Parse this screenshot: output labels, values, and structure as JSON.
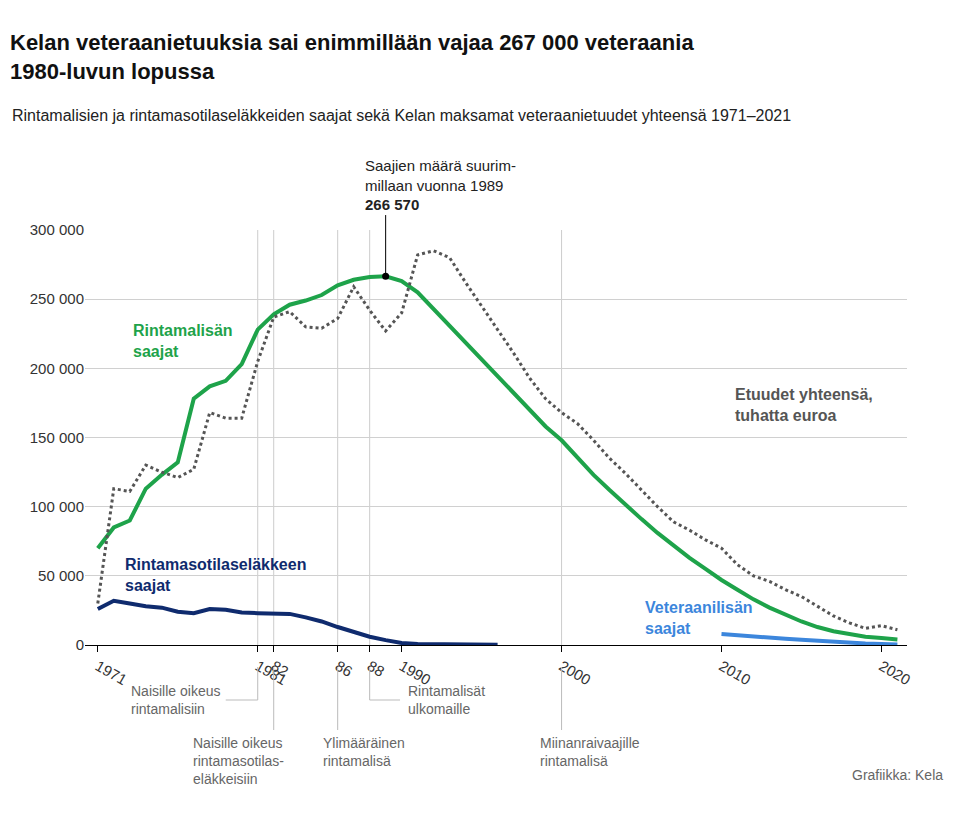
{
  "chart_data": {
    "type": "line",
    "title": "Kelan veteraanietuuksia sai enimmillään vajaa 267 000 veteraania\n1980-luvun lopussa",
    "subtitle": "Rintamalisien ja rintamasotilaseläkkeiden saajat sekä Kelan maksamat veteraanietuudet yhteensä 1971–2021",
    "source": "Grafiikka: Kela",
    "x": [
      1971,
      1972,
      1973,
      1974,
      1975,
      1976,
      1977,
      1978,
      1979,
      1980,
      1981,
      1982,
      1983,
      1984,
      1985,
      1986,
      1987,
      1988,
      1989,
      1990,
      1991,
      1992,
      1993,
      1994,
      1995,
      1996,
      1997,
      1998,
      1999,
      2000,
      2001,
      2002,
      2003,
      2004,
      2005,
      2006,
      2007,
      2008,
      2009,
      2010,
      2011,
      2012,
      2013,
      2014,
      2015,
      2016,
      2017,
      2018,
      2019,
      2020,
      2021
    ],
    "series": [
      {
        "name": "Rintamalisän\nsaajat",
        "color": "#1ea34a",
        "line_style": "solid",
        "values": [
          70000,
          85000,
          90000,
          113000,
          123000,
          132000,
          178000,
          187000,
          191000,
          203000,
          228000,
          239000,
          246000,
          249000,
          253000,
          260000,
          264000,
          266000,
          266570,
          263000,
          255000,
          243000,
          231000,
          219000,
          207000,
          195000,
          183000,
          170000,
          158000,
          148000,
          135000,
          123000,
          112000,
          101000,
          91000,
          81000,
          72000,
          63000,
          55000,
          47000,
          40000,
          33000,
          27000,
          22000,
          17000,
          13000,
          10000,
          8000,
          6000,
          5000,
          4000
        ]
      },
      {
        "name": "Rintamasotilaseläkkeen\nsaajat",
        "color": "#0f2b6e",
        "line_style": "solid",
        "values": [
          26000,
          32000,
          30000,
          28000,
          27000,
          24000,
          23000,
          26000,
          25500,
          23500,
          23000,
          23000,
          22500,
          20000,
          17000,
          13000,
          9500,
          6000,
          3500,
          1500,
          700,
          500,
          400,
          300,
          200,
          200,
          null,
          null,
          null,
          null,
          null,
          null,
          null,
          null,
          null,
          null,
          null,
          null,
          null,
          null,
          null,
          null,
          null,
          null,
          null,
          null,
          null,
          null,
          null,
          null,
          null
        ]
      },
      {
        "name": "Etuudet yhteensä,\ntuhatta euroa",
        "color": "#555555",
        "line_style": "dotted",
        "values": [
          30000,
          113000,
          111000,
          130000,
          125000,
          121000,
          127000,
          168000,
          164000,
          164000,
          205000,
          237000,
          241000,
          230000,
          229000,
          236000,
          259000,
          242000,
          227000,
          240000,
          282000,
          285000,
          280000,
          262000,
          245000,
          228000,
          211000,
          193000,
          178000,
          168000,
          160000,
          148000,
          135000,
          124000,
          112000,
          100000,
          89000,
          83000,
          76000,
          70000,
          58000,
          50000,
          46000,
          40000,
          35000,
          28000,
          21000,
          16000,
          12000,
          14000,
          11000
        ]
      },
      {
        "name": "Veteraanilisän\nsaajat",
        "color": "#3c86dc",
        "line_style": "solid",
        "values": [
          null,
          null,
          null,
          null,
          null,
          null,
          null,
          null,
          null,
          null,
          null,
          null,
          null,
          null,
          null,
          null,
          null,
          null,
          null,
          null,
          null,
          null,
          null,
          null,
          null,
          null,
          null,
          null,
          null,
          null,
          null,
          null,
          null,
          null,
          null,
          null,
          null,
          null,
          null,
          8000,
          7000,
          6000,
          5200,
          4500,
          3800,
          3000,
          2300,
          1700,
          1100,
          700,
          400
        ]
      }
    ],
    "xlim": [
      1970.2,
      2021.6
    ],
    "xticks": [
      1971,
      1981,
      {
        "value": 1982,
        "label": "82"
      },
      {
        "value": 1986,
        "label": "86"
      },
      {
        "value": 1988,
        "label": "88"
      },
      1990,
      2000,
      2010,
      2020
    ],
    "ylim": [
      0,
      300000
    ],
    "yticks": [
      0,
      {
        "value": 50000,
        "label": "50 000"
      },
      {
        "value": 100000,
        "label": "100 000"
      },
      {
        "value": 150000,
        "label": "150 000"
      },
      {
        "value": 200000,
        "label": "200 000"
      },
      {
        "value": 250000,
        "label": "250 000"
      },
      {
        "value": 300000,
        "label": "300 000"
      }
    ],
    "grid": true,
    "legend": "none",
    "peak_annotation": {
      "x": 1989,
      "y": 266570,
      "text": "Saajien määrä suurim-\nmillaan vuonna 1989",
      "value_label": "266 570"
    },
    "annotations": [
      {
        "x": 1981,
        "text": "Naisille oikeus\nrintamalisiin"
      },
      {
        "x": 1982,
        "text": "Naisille oikeus\nrintamasotilas-\neläkkeisiin"
      },
      {
        "x": 1986,
        "text": "Ylimääräinen\nrintamalisä"
      },
      {
        "x": 1988,
        "text": "Rintamalisät\nulkomaille"
      },
      {
        "x": 2000,
        "text": "Miinanraivaajille\nrintamalisä"
      }
    ]
  }
}
